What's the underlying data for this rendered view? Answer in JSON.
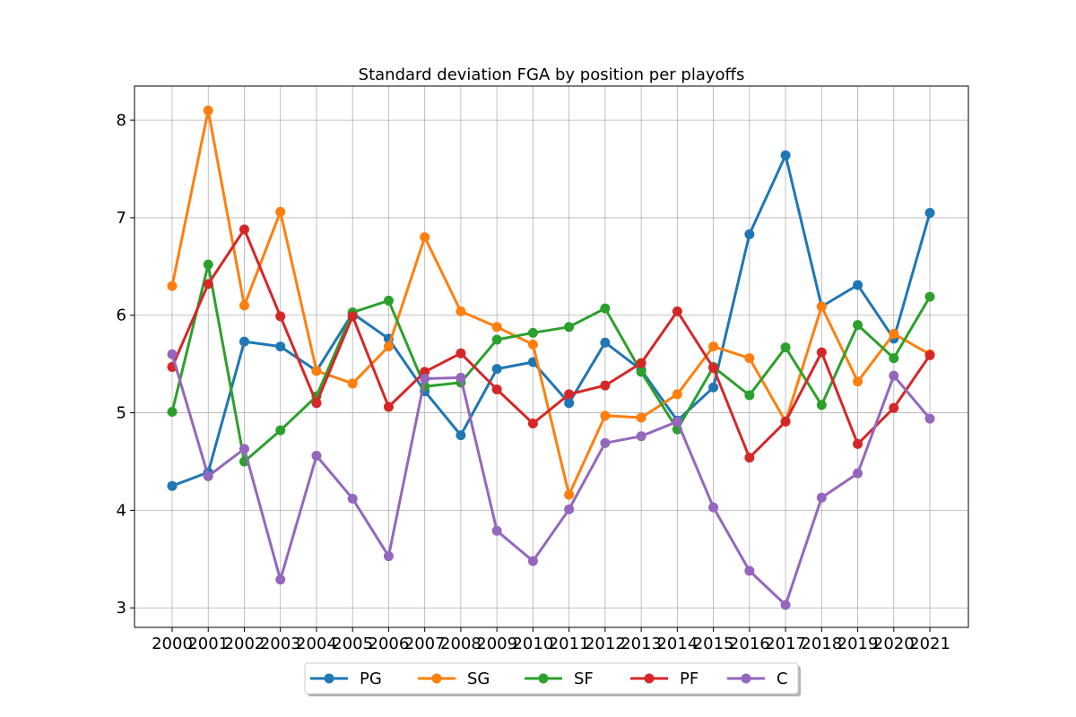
{
  "chart_data": {
    "type": "line",
    "title": "Standard deviation FGA by position per playoffs",
    "xlabel": "",
    "ylabel": "",
    "categories": [
      "2000",
      "2001",
      "2002",
      "2003",
      "2004",
      "2005",
      "2006",
      "2007",
      "2008",
      "2009",
      "2010",
      "2011",
      "2012",
      "2013",
      "2014",
      "2015",
      "2016",
      "2017",
      "2018",
      "2019",
      "2020",
      "2021"
    ],
    "yticks": [
      3,
      4,
      5,
      6,
      7,
      8
    ],
    "ylim": [
      2.8,
      8.35
    ],
    "grid": true,
    "legend_position": "bottom-center",
    "series": [
      {
        "name": "PG",
        "color": "#1f77b4",
        "values": [
          4.25,
          4.39,
          5.73,
          5.68,
          5.43,
          6.02,
          5.76,
          5.22,
          4.77,
          5.45,
          5.52,
          5.1,
          5.72,
          5.44,
          4.92,
          5.26,
          6.83,
          7.64,
          6.09,
          6.31,
          5.76,
          7.05
        ]
      },
      {
        "name": "SG",
        "color": "#ff7f0e",
        "values": [
          6.3,
          8.1,
          6.1,
          7.06,
          5.43,
          5.3,
          5.68,
          6.8,
          6.04,
          5.88,
          5.7,
          4.16,
          4.97,
          4.95,
          5.19,
          5.68,
          5.56,
          4.91,
          6.09,
          5.32,
          5.81,
          5.6
        ]
      },
      {
        "name": "SF",
        "color": "#2ca02c",
        "values": [
          5.01,
          6.52,
          4.5,
          4.82,
          5.17,
          6.03,
          6.15,
          5.27,
          5.31,
          5.75,
          5.82,
          5.88,
          6.07,
          5.42,
          4.83,
          5.47,
          5.18,
          5.67,
          5.08,
          5.9,
          5.56,
          6.19
        ]
      },
      {
        "name": "PF",
        "color": "#d62728",
        "values": [
          5.47,
          6.32,
          6.88,
          5.99,
          5.1,
          5.99,
          5.06,
          5.42,
          5.61,
          5.24,
          4.89,
          5.19,
          5.28,
          5.51,
          6.04,
          5.46,
          4.54,
          4.91,
          5.62,
          4.68,
          5.05,
          5.59
        ]
      },
      {
        "name": "C",
        "color": "#9467bd",
        "values": [
          5.6,
          4.35,
          4.63,
          3.29,
          4.56,
          4.12,
          3.53,
          5.35,
          5.36,
          3.79,
          3.48,
          4.01,
          4.69,
          4.76,
          4.91,
          4.03,
          3.38,
          3.03,
          4.13,
          4.38,
          5.38,
          4.94
        ]
      }
    ]
  }
}
